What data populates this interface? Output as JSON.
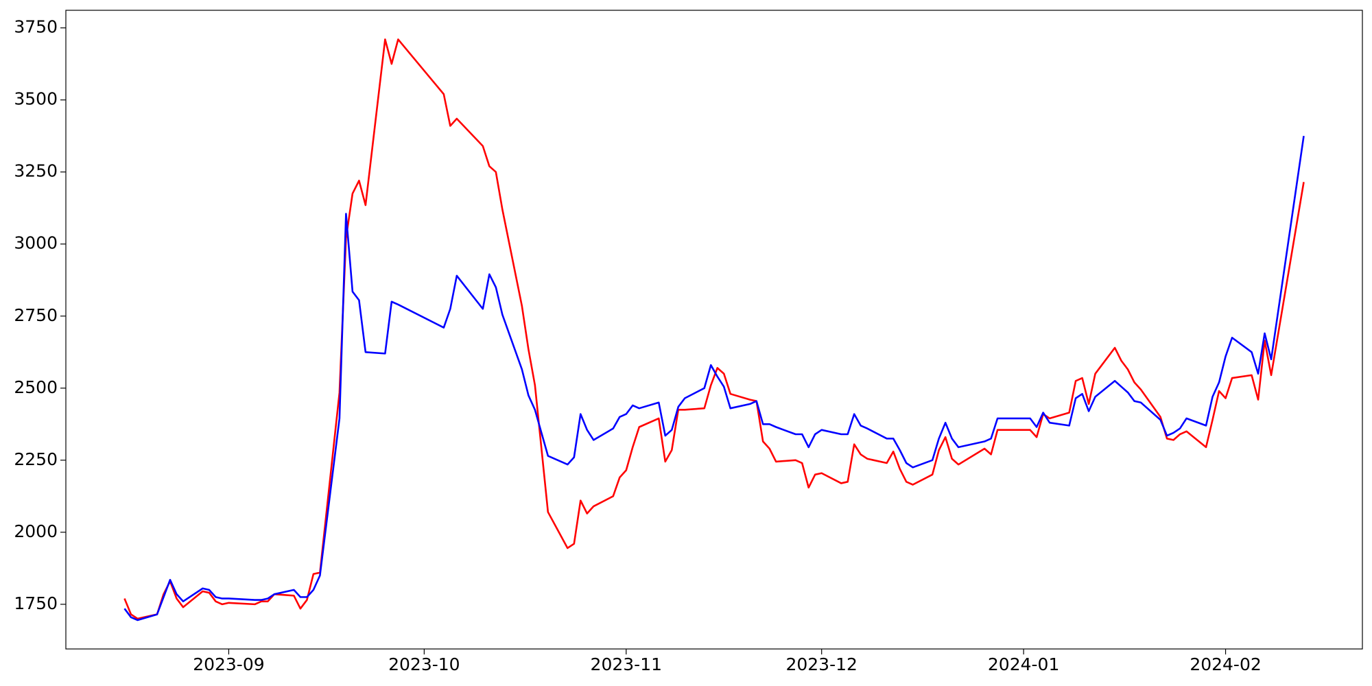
{
  "chart_data": {
    "type": "line",
    "x": [
      19585,
      19586,
      19587,
      19590,
      19591,
      19592,
      19593,
      19594,
      19597,
      19598,
      19599,
      19600,
      19601,
      19605,
      19606,
      19607,
      19608,
      19611,
      19612,
      19613,
      19614,
      19615,
      19618,
      19619,
      19620,
      19621,
      19622,
      19625,
      19626,
      19627,
      19634,
      19635,
      19636,
      19640,
      19641,
      19642,
      19643,
      19646,
      19647,
      19648,
      19650,
      19653,
      19654,
      19655,
      19656,
      19657,
      19660,
      19661,
      19662,
      19663,
      19664,
      19667,
      19668,
      19669,
      19670,
      19671,
      19674,
      19675,
      19676,
      19677,
      19678,
      19681,
      19682,
      19683,
      19684,
      19685,
      19688,
      19689,
      19690,
      19691,
      19692,
      19695,
      19696,
      19697,
      19698,
      19699,
      19702,
      19703,
      19704,
      19705,
      19706,
      19709,
      19710,
      19711,
      19712,
      19713,
      19717,
      19718,
      19719,
      19724,
      19725,
      19726,
      19727,
      19730,
      19731,
      19732,
      19733,
      19734,
      19737,
      19738,
      19739,
      19740,
      19741,
      19744,
      19745,
      19746,
      19747,
      19748,
      19751,
      19752,
      19753,
      19754,
      19755,
      19758,
      19759,
      19760,
      19761,
      19766
    ],
    "series": [
      {
        "color": "#ff0000",
        "values": [
          1770,
          1715,
          1700,
          1715,
          1785,
          1830,
          1770,
          1740,
          1795,
          1790,
          1760,
          1750,
          1755,
          1750,
          1760,
          1760,
          1785,
          1780,
          1735,
          1765,
          1855,
          1860,
          2485,
          3020,
          3175,
          3220,
          3135,
          3710,
          3625,
          3710,
          3520,
          3410,
          3435,
          3340,
          3270,
          3250,
          3120,
          2785,
          2635,
          2510,
          2070,
          1945,
          1960,
          2110,
          2065,
          2090,
          2125,
          2190,
          2215,
          2295,
          2365,
          2395,
          2245,
          2285,
          2425,
          2425,
          2430,
          2510,
          2570,
          2550,
          2480,
          2460,
          2455,
          2315,
          2290,
          2245,
          2250,
          2240,
          2155,
          2200,
          2205,
          2170,
          2175,
          2305,
          2270,
          2255,
          2240,
          2280,
          2220,
          2175,
          2165,
          2200,
          2285,
          2330,
          2255,
          2235,
          2290,
          2270,
          2355,
          2355,
          2330,
          2410,
          2395,
          2415,
          2525,
          2535,
          2445,
          2550,
          2640,
          2595,
          2565,
          2520,
          2495,
          2400,
          2325,
          2320,
          2340,
          2350,
          2295,
          2390,
          2490,
          2465,
          2535,
          2545,
          2460,
          2665,
          2545,
          3215
        ]
      },
      {
        "color": "#0000ff",
        "values": [
          1735,
          1705,
          1695,
          1715,
          1775,
          1835,
          1785,
          1760,
          1805,
          1800,
          1775,
          1770,
          1770,
          1765,
          1765,
          1770,
          1785,
          1800,
          1775,
          1775,
          1800,
          1850,
          2395,
          3105,
          2835,
          2805,
          2625,
          2620,
          2800,
          2790,
          2710,
          2775,
          2890,
          2775,
          2895,
          2850,
          2755,
          2565,
          2475,
          2425,
          2265,
          2235,
          2260,
          2410,
          2355,
          2320,
          2360,
          2400,
          2410,
          2440,
          2430,
          2450,
          2335,
          2355,
          2435,
          2465,
          2500,
          2580,
          2540,
          2505,
          2430,
          2445,
          2455,
          2375,
          2375,
          2365,
          2340,
          2340,
          2295,
          2340,
          2355,
          2340,
          2340,
          2410,
          2370,
          2360,
          2325,
          2325,
          2285,
          2240,
          2225,
          2250,
          2325,
          2380,
          2325,
          2295,
          2315,
          2325,
          2395,
          2395,
          2365,
          2415,
          2380,
          2370,
          2465,
          2480,
          2420,
          2470,
          2525,
          2505,
          2485,
          2455,
          2450,
          2390,
          2335,
          2345,
          2360,
          2395,
          2370,
          2470,
          2520,
          2610,
          2675,
          2625,
          2550,
          2690,
          2600,
          3375
        ]
      }
    ],
    "xlim": [
      19576,
      19775
    ],
    "xticks": [
      {
        "value": 19601,
        "label": "2023-09"
      },
      {
        "value": 19631,
        "label": "2023-10"
      },
      {
        "value": 19662,
        "label": "2023-11"
      },
      {
        "value": 19692,
        "label": "2023-12"
      },
      {
        "value": 19723,
        "label": "2024-01"
      },
      {
        "value": 19754,
        "label": "2024-02"
      }
    ],
    "ylim": [
      1595,
      3811
    ],
    "yticks": [
      1750,
      2000,
      2250,
      2500,
      2750,
      3000,
      3250,
      3500,
      3750
    ],
    "grid": false
  }
}
